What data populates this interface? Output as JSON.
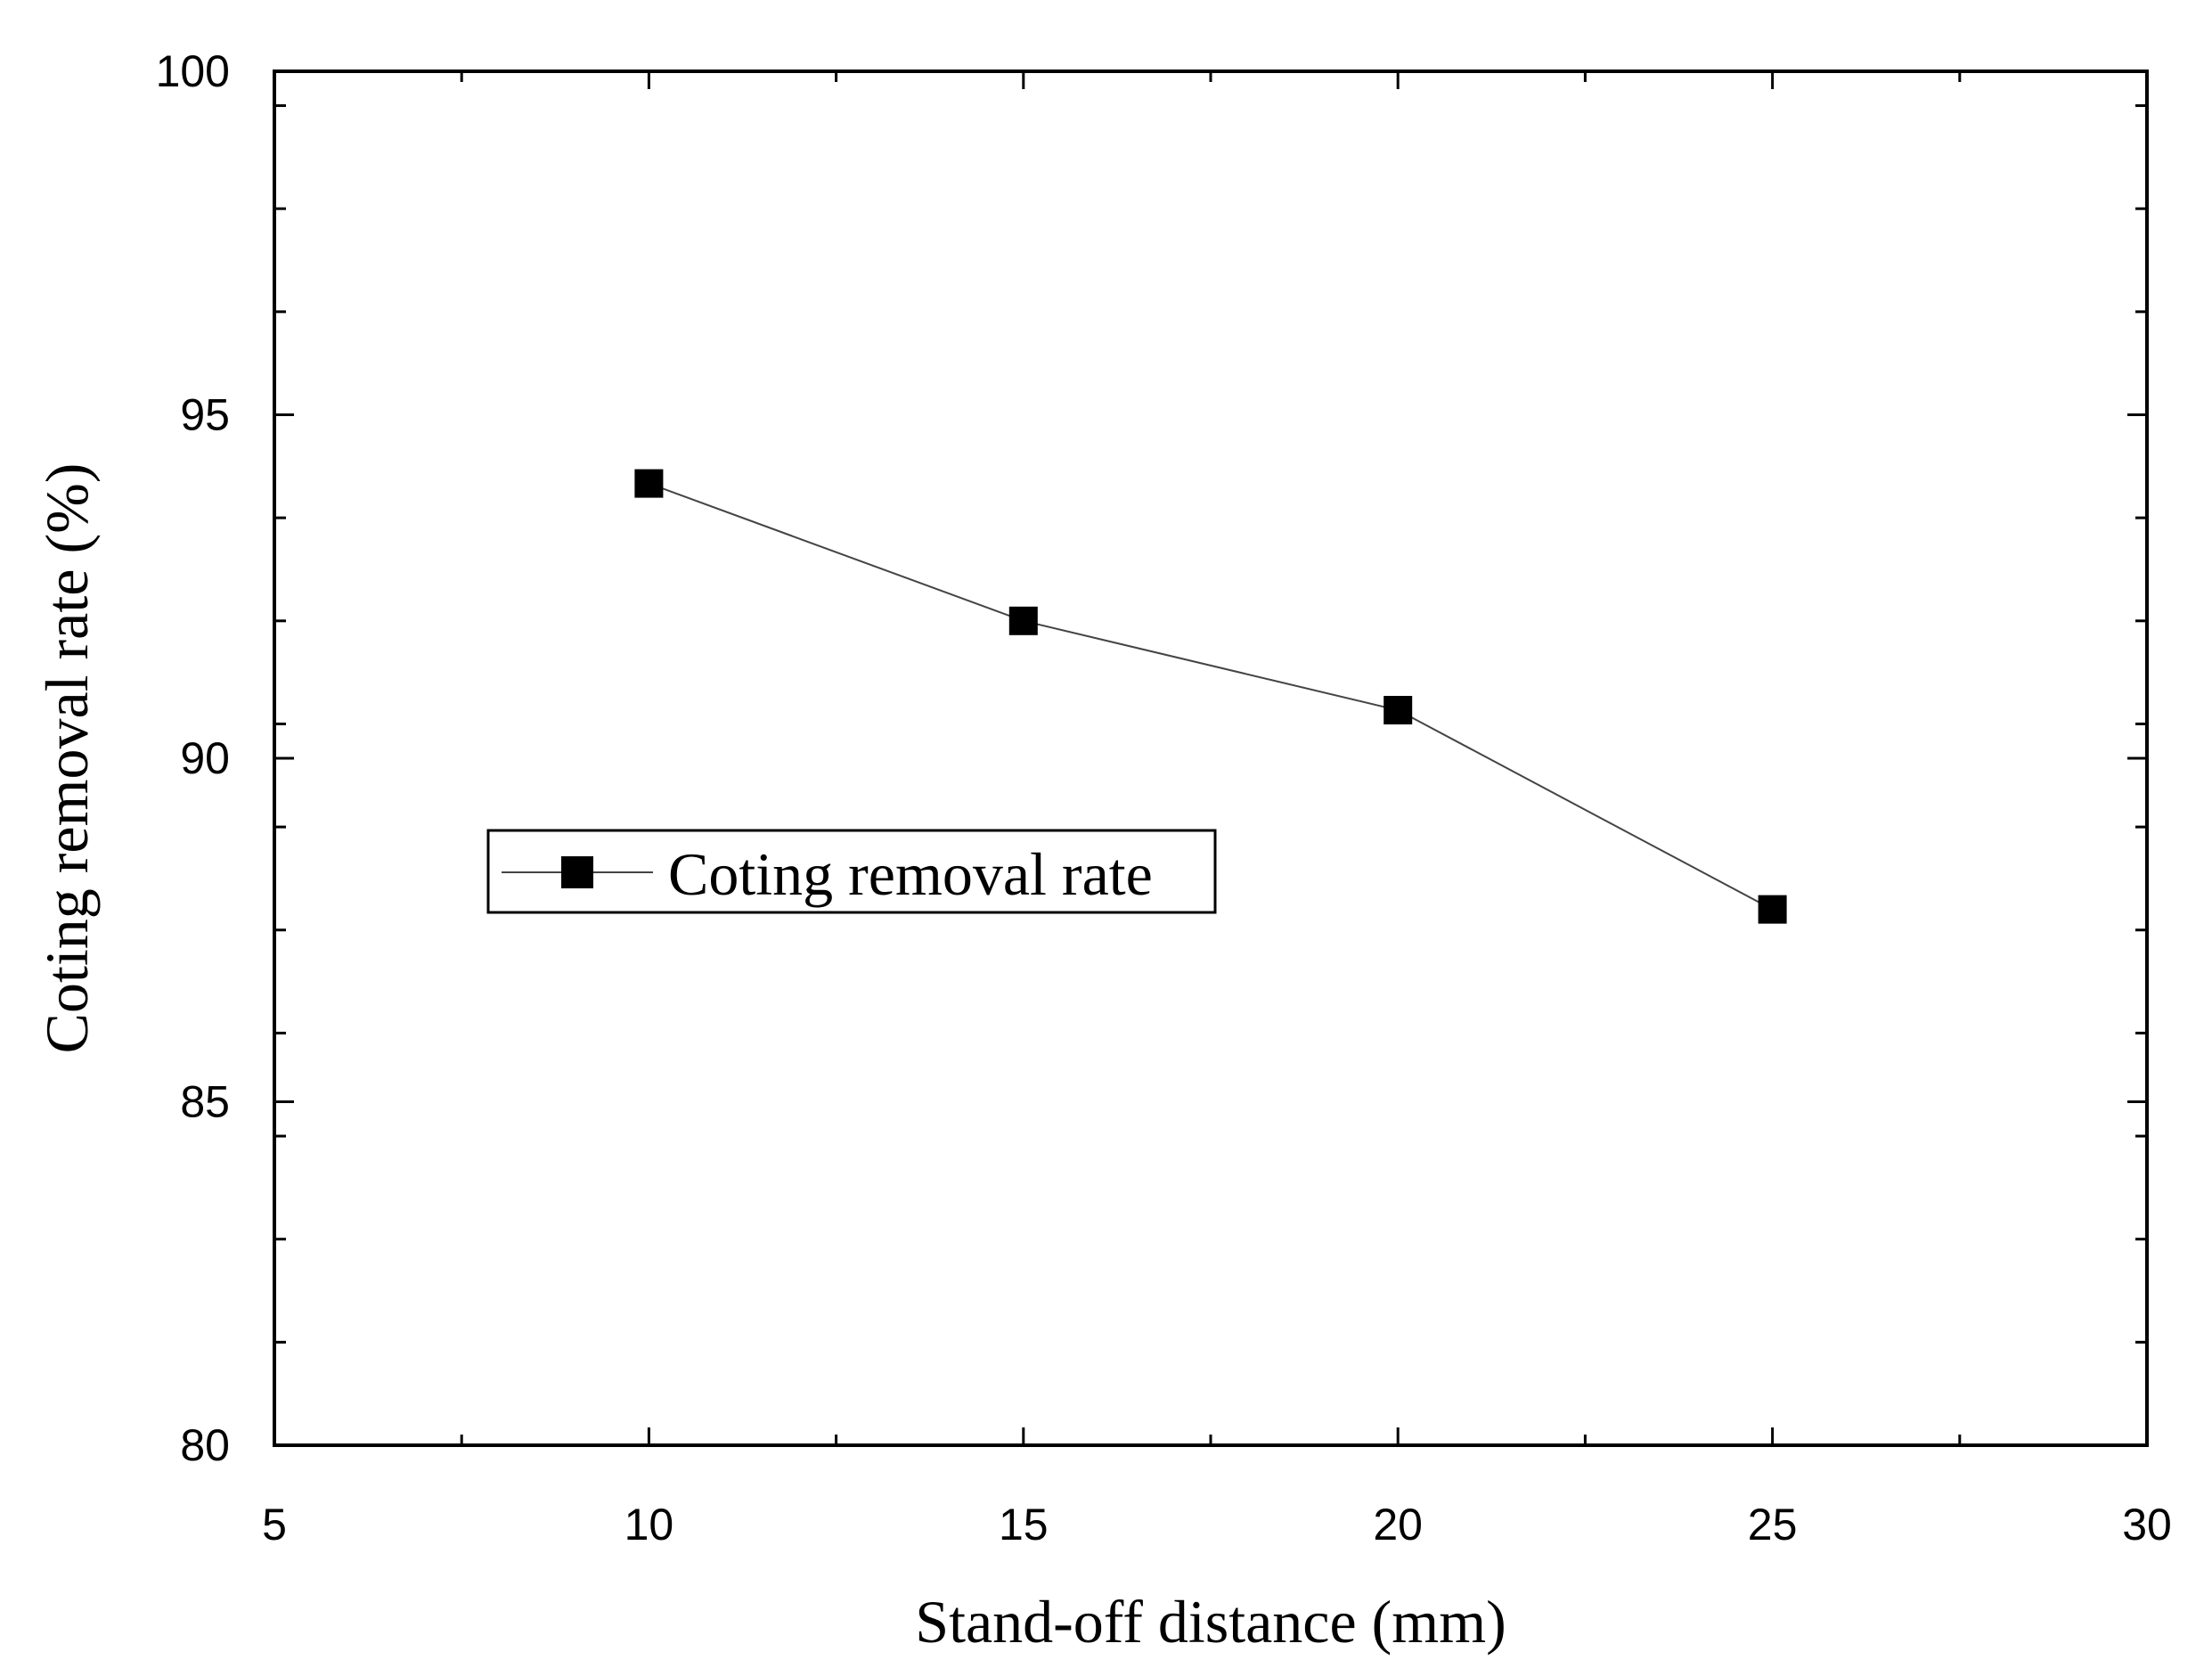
{
  "chart_data": {
    "type": "line",
    "title": "",
    "xlabel": "Stand-off distance (mm)",
    "ylabel": "Coting removal rate (%)",
    "xlim": [
      5,
      30
    ],
    "ylim": [
      80,
      100
    ],
    "x_ticks": [
      "5",
      "10",
      "15",
      "20",
      "25",
      "30"
    ],
    "y_ticks": [
      "80",
      "85",
      "90",
      "95",
      "100"
    ],
    "x": [
      10,
      15,
      20,
      25
    ],
    "series": [
      {
        "name": "Coting removal rate",
        "values": [
          94.0,
          92.0,
          90.7,
          87.8
        ]
      }
    ],
    "legend": {
      "entry": "Coting removal rate",
      "placement": "center-left"
    },
    "grid": false,
    "colors": {
      "line": "#444444",
      "marker": "#000000",
      "axis": "#000000"
    }
  }
}
